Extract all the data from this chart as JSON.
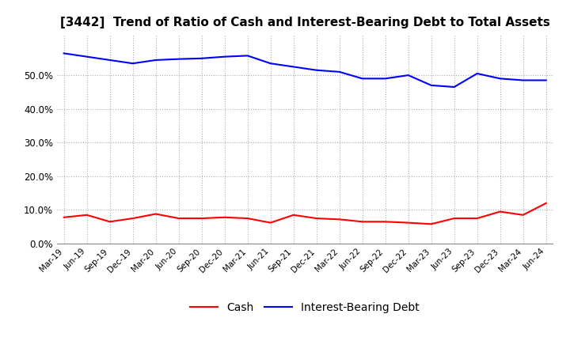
{
  "title": "[3442]  Trend of Ratio of Cash and Interest-Bearing Debt to Total Assets",
  "labels": [
    "Mar-19",
    "Jun-19",
    "Sep-19",
    "Dec-19",
    "Mar-20",
    "Jun-20",
    "Sep-20",
    "Dec-20",
    "Mar-21",
    "Jun-21",
    "Sep-21",
    "Dec-21",
    "Mar-22",
    "Jun-22",
    "Sep-22",
    "Dec-22",
    "Mar-23",
    "Jun-23",
    "Sep-23",
    "Dec-23",
    "Mar-24",
    "Jun-24"
  ],
  "cash": [
    7.8,
    8.5,
    6.5,
    7.5,
    8.8,
    7.5,
    7.5,
    7.8,
    7.5,
    6.2,
    8.5,
    7.5,
    7.2,
    6.5,
    6.5,
    6.2,
    5.8,
    7.5,
    7.5,
    9.5,
    8.5,
    12.0
  ],
  "interest_bearing_debt": [
    56.5,
    55.5,
    54.5,
    53.5,
    54.5,
    54.8,
    55.0,
    55.5,
    55.8,
    53.5,
    52.5,
    51.5,
    51.0,
    49.0,
    49.0,
    50.0,
    47.0,
    46.5,
    50.5,
    49.0,
    48.5,
    48.5
  ],
  "cash_color": "#FF0000",
  "debt_color": "#0000FF",
  "legend_cash": "Cash",
  "legend_debt": "Interest-Bearing Debt",
  "ylim": [
    0,
    62
  ],
  "yticks": [
    0,
    10,
    20,
    30,
    40,
    50
  ],
  "background_color": "#FFFFFF",
  "grid_color": "#999999"
}
